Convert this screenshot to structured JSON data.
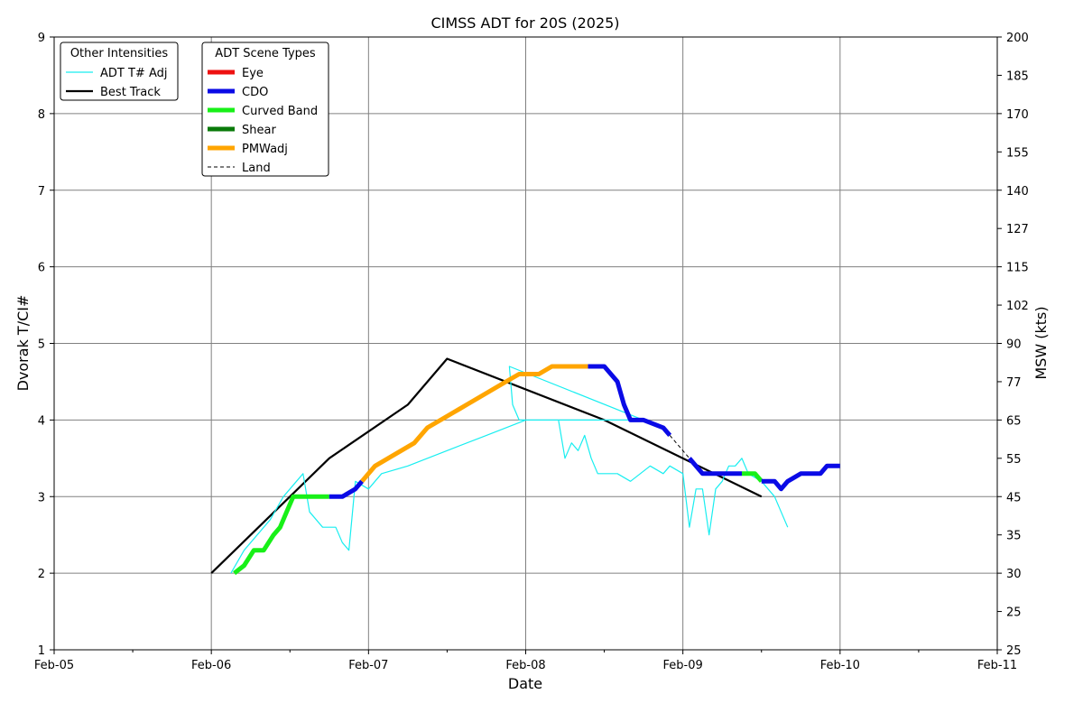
{
  "chart_data": {
    "type": "line",
    "title": "CIMSS ADT for 20S (2025)",
    "xlabel": "Date",
    "ylabel": "Dvorak T/CI#",
    "y2label": "MSW (kts)",
    "xlim": [
      "2025-02-05",
      "2025-02-11"
    ],
    "ylim": [
      1,
      9
    ],
    "x_ticks": [
      "Feb-05",
      "Feb-06",
      "Feb-07",
      "Feb-08",
      "Feb-09",
      "Feb-10",
      "Feb-11"
    ],
    "y_ticks": [
      1,
      2,
      3,
      4,
      5,
      6,
      7,
      8,
      9
    ],
    "y2_ticks": [
      {
        "t": 1,
        "label": "25"
      },
      {
        "t": 1.5,
        "label": "25"
      },
      {
        "t": 2,
        "label": "30"
      },
      {
        "t": 2.5,
        "label": "35"
      },
      {
        "t": 3,
        "label": "45"
      },
      {
        "t": 3.5,
        "label": "55"
      },
      {
        "t": 4,
        "label": "65"
      },
      {
        "t": 4.5,
        "label": "77"
      },
      {
        "t": 5,
        "label": "90"
      },
      {
        "t": 5.5,
        "label": "102"
      },
      {
        "t": 6,
        "label": "115"
      },
      {
        "t": 6.5,
        "label": "127"
      },
      {
        "t": 7,
        "label": "140"
      },
      {
        "t": 7.5,
        "label": "155"
      },
      {
        "t": 8,
        "label": "170"
      },
      {
        "t": 8.5,
        "label": "185"
      },
      {
        "t": 9,
        "label": "200"
      }
    ],
    "grid": true,
    "colors": {
      "eye": "#ee1111",
      "cdo": "#0a0ae6",
      "curved_band": "#18f018",
      "shear": "#0a7a0a",
      "pmwadj": "#ffa500",
      "tadj": "#18eef0",
      "best": "#000000"
    },
    "legends": {
      "other": {
        "title": "Other Intensities",
        "placement": "top-left",
        "entries": [
          {
            "label": "ADT T# Adj",
            "color": "#18eef0",
            "style": "thin"
          },
          {
            "label": "Best Track",
            "color": "#000000",
            "style": "solid"
          }
        ]
      },
      "scene": {
        "title": "ADT Scene Types",
        "placement": "top-left",
        "entries": [
          {
            "label": "Eye",
            "color": "#ee1111",
            "style": "thick"
          },
          {
            "label": "CDO",
            "color": "#0a0ae6",
            "style": "thick"
          },
          {
            "label": "Curved Band",
            "color": "#18f018",
            "style": "thick"
          },
          {
            "label": "Shear",
            "color": "#0a7a0a",
            "style": "thick"
          },
          {
            "label": "PMWadj",
            "color": "#ffa500",
            "style": "thick"
          },
          {
            "label": "Land",
            "color": "#000000",
            "style": "dashed"
          }
        ]
      }
    },
    "series": [
      {
        "name": "Best Track",
        "key": "best",
        "points": [
          [
            "2025-02-06 00:00",
            2.0
          ],
          [
            "2025-02-06 18:00",
            3.5
          ],
          [
            "2025-02-07 06:00",
            4.2
          ],
          [
            "2025-02-07 12:00",
            4.8
          ],
          [
            "2025-02-08 12:00",
            4.0
          ],
          [
            "2025-02-09 12:00",
            3.0
          ]
        ]
      },
      {
        "name": "ADT T# Adj",
        "key": "tadj",
        "points": [
          [
            "2025-02-06 03:00",
            2.0
          ],
          [
            "2025-02-06 05:00",
            2.3
          ],
          [
            "2025-02-06 07:00",
            2.5
          ],
          [
            "2025-02-06 09:00",
            2.7
          ],
          [
            "2025-02-06 11:00",
            3.0
          ],
          [
            "2025-02-06 13:00",
            3.2
          ],
          [
            "2025-02-06 14:00",
            3.3
          ],
          [
            "2025-02-06 15:00",
            2.8
          ],
          [
            "2025-02-06 17:00",
            2.6
          ],
          [
            "2025-02-06 19:00",
            2.6
          ],
          [
            "2025-02-06 20:00",
            2.4
          ],
          [
            "2025-02-06 21:00",
            2.3
          ],
          [
            "2025-02-06 22:00",
            3.2
          ],
          [
            "2025-02-07 00:00",
            3.1
          ],
          [
            "2025-02-07 02:00",
            3.3
          ],
          [
            "2025-02-07 06:00",
            3.4
          ],
          [
            "2025-02-07 12:00",
            3.6
          ],
          [
            "2025-02-07 18:00",
            3.8
          ],
          [
            "2025-02-08 00:00",
            4.0
          ],
          [
            "2025-02-08 06:00",
            4.0
          ],
          [
            "2025-02-08 12:00",
            4.0
          ],
          [
            "2025-02-08 18:00",
            4.0
          ],
          [
            "2025-02-07 21:30",
            4.7
          ],
          [
            "2025-02-07 22:00",
            4.2
          ],
          [
            "2025-02-07 23:00",
            4.0
          ],
          [
            "2025-02-08 05:00",
            4.0
          ],
          [
            "2025-02-08 06:00",
            3.5
          ],
          [
            "2025-02-08 07:00",
            3.7
          ],
          [
            "2025-02-08 08:00",
            3.6
          ],
          [
            "2025-02-08 09:00",
            3.8
          ],
          [
            "2025-02-08 10:00",
            3.5
          ],
          [
            "2025-02-08 11:00",
            3.3
          ],
          [
            "2025-02-08 14:00",
            3.3
          ],
          [
            "2025-02-08 16:00",
            3.2
          ],
          [
            "2025-02-08 19:00",
            3.4
          ],
          [
            "2025-02-08 21:00",
            3.3
          ],
          [
            "2025-02-08 22:00",
            3.4
          ],
          [
            "2025-02-09 00:00",
            3.3
          ],
          [
            "2025-02-09 01:00",
            2.6
          ],
          [
            "2025-02-09 02:00",
            3.1
          ],
          [
            "2025-02-09 03:00",
            3.1
          ],
          [
            "2025-02-09 04:00",
            2.5
          ],
          [
            "2025-02-09 05:00",
            3.1
          ],
          [
            "2025-02-09 06:00",
            3.2
          ],
          [
            "2025-02-09 07:00",
            3.4
          ],
          [
            "2025-02-09 08:00",
            3.4
          ],
          [
            "2025-02-09 09:00",
            3.5
          ],
          [
            "2025-02-09 10:00",
            3.3
          ],
          [
            "2025-02-09 12:00",
            3.2
          ],
          [
            "2025-02-09 14:00",
            3.0
          ],
          [
            "2025-02-09 15:00",
            2.8
          ],
          [
            "2025-02-09 16:00",
            2.6
          ]
        ]
      },
      {
        "name": "Curved Band",
        "key": "curved_band",
        "points": [
          [
            "2025-02-06 03:30",
            2.0
          ],
          [
            "2025-02-06 05:00",
            2.1
          ],
          [
            "2025-02-06 06:30",
            2.3
          ],
          [
            "2025-02-06 08:00",
            2.3
          ],
          [
            "2025-02-06 09:30",
            2.5
          ],
          [
            "2025-02-06 10:30",
            2.6
          ],
          [
            "2025-02-06 11:30",
            2.8
          ],
          [
            "2025-02-06 12:30",
            3.0
          ],
          [
            "2025-02-06 18:00",
            3.0
          ]
        ]
      },
      {
        "name": "CDO",
        "key": "cdo",
        "points": [
          [
            "2025-02-06 18:00",
            3.0
          ],
          [
            "2025-02-06 20:00",
            3.0
          ],
          [
            "2025-02-06 22:00",
            3.1
          ],
          [
            "2025-02-06 23:00",
            3.2
          ]
        ]
      },
      {
        "name": "PMWadj",
        "key": "pmwadj",
        "points": [
          [
            "2025-02-06 23:00",
            3.2
          ],
          [
            "2025-02-07 01:00",
            3.4
          ],
          [
            "2025-02-07 03:00",
            3.5
          ],
          [
            "2025-02-07 05:00",
            3.6
          ],
          [
            "2025-02-07 07:00",
            3.7
          ],
          [
            "2025-02-07 09:00",
            3.9
          ],
          [
            "2025-02-07 11:00",
            4.0
          ],
          [
            "2025-02-07 13:00",
            4.1
          ],
          [
            "2025-02-07 15:00",
            4.2
          ],
          [
            "2025-02-07 17:00",
            4.3
          ],
          [
            "2025-02-07 19:00",
            4.4
          ],
          [
            "2025-02-07 21:00",
            4.5
          ],
          [
            "2025-02-07 23:00",
            4.6
          ],
          [
            "2025-02-08 02:00",
            4.6
          ],
          [
            "2025-02-08 04:00",
            4.7
          ],
          [
            "2025-02-08 09:30",
            4.7
          ]
        ]
      },
      {
        "name": "CDO",
        "key": "cdo",
        "points": [
          [
            "2025-02-08 09:30",
            4.7
          ],
          [
            "2025-02-08 12:00",
            4.7
          ],
          [
            "2025-02-08 14:00",
            4.5
          ],
          [
            "2025-02-08 15:00",
            4.2
          ],
          [
            "2025-02-08 16:00",
            4.0
          ],
          [
            "2025-02-08 18:00",
            4.0
          ],
          [
            "2025-02-08 21:00",
            3.9
          ],
          [
            "2025-02-08 22:00",
            3.8
          ]
        ]
      },
      {
        "name": "CDO",
        "key": "cdo",
        "points": [
          [
            "2025-02-09 01:00",
            3.5
          ],
          [
            "2025-02-09 03:00",
            3.3
          ],
          [
            "2025-02-09 09:00",
            3.3
          ]
        ]
      },
      {
        "name": "Curved Band",
        "key": "curved_band",
        "points": [
          [
            "2025-02-09 09:00",
            3.3
          ],
          [
            "2025-02-09 11:00",
            3.3
          ],
          [
            "2025-02-09 12:00",
            3.2
          ]
        ]
      },
      {
        "name": "CDO",
        "key": "cdo",
        "points": [
          [
            "2025-02-09 12:00",
            3.2
          ],
          [
            "2025-02-09 14:00",
            3.2
          ],
          [
            "2025-02-09 15:00",
            3.1
          ],
          [
            "2025-02-09 16:00",
            3.2
          ],
          [
            "2025-02-09 18:00",
            3.3
          ],
          [
            "2025-02-09 21:00",
            3.3
          ],
          [
            "2025-02-09 22:00",
            3.4
          ],
          [
            "2025-02-10 00:00",
            3.4
          ]
        ]
      },
      {
        "name": "Land",
        "key": "land",
        "points": [
          [
            "2025-02-08 22:00",
            3.8
          ],
          [
            "2025-02-09 01:00",
            3.5
          ]
        ]
      },
      {
        "name": "Land",
        "key": "land",
        "points": [
          [
            "2025-02-09 03:00",
            3.3
          ],
          [
            "2025-02-09 09:00",
            3.3
          ]
        ]
      }
    ]
  }
}
